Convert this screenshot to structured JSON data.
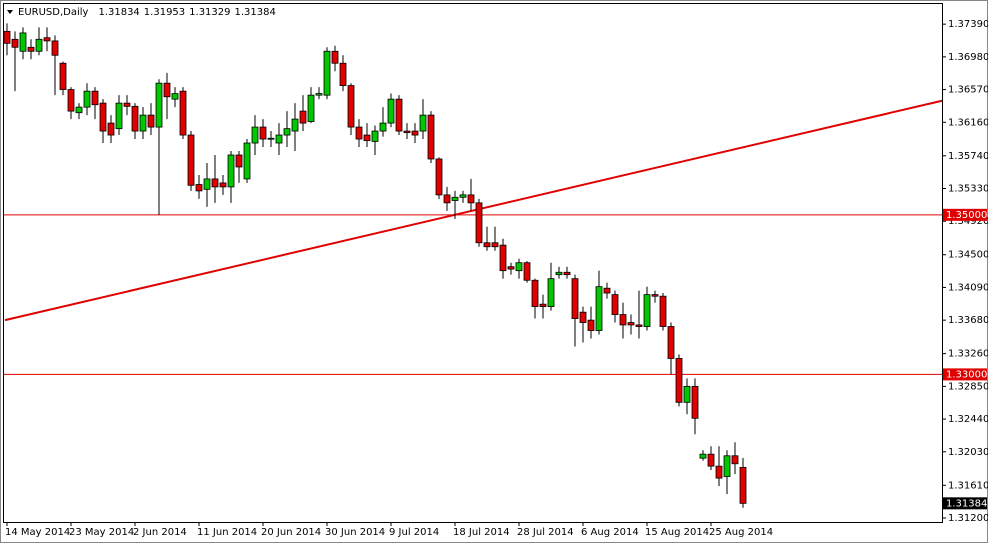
{
  "chart_data": {
    "type": "candlestick",
    "header": {
      "symbol": "EURUSD,Daily",
      "values": [
        {
          "value": 1.31834,
          "label": "1.31834"
        },
        {
          "value": 1.31953,
          "label": "1.31953"
        },
        {
          "value": 1.31329,
          "label": "1.31329"
        },
        {
          "value": 1.31384,
          "label": "1.31384"
        }
      ]
    },
    "categories": [
      "14 May 2014",
      null,
      null,
      null,
      null,
      null,
      null,
      null,
      "23 May 2014",
      null,
      null,
      null,
      null,
      null,
      null,
      null,
      "2 Jun 2014",
      null,
      null,
      null,
      null,
      null,
      null,
      null,
      "11 Jun 2014",
      null,
      null,
      null,
      null,
      null,
      null,
      null,
      "20 Jun 2014",
      null,
      null,
      null,
      null,
      null,
      null,
      null,
      "30 Jun 2014",
      null,
      null,
      null,
      null,
      null,
      null,
      null,
      "9 Jul 2014",
      null,
      null,
      null,
      null,
      null,
      null,
      null,
      "18 Jul 2014",
      null,
      null,
      null,
      null,
      null,
      null,
      null,
      "28 Jul 2014",
      null,
      null,
      null,
      null,
      null,
      null,
      null,
      "6 Aug 2014",
      null,
      null,
      null,
      null,
      null,
      null,
      null,
      "15 Aug 2014",
      null,
      null,
      null,
      null,
      null,
      null,
      null,
      "25 Aug 2014",
      null,
      null,
      null,
      null
    ],
    "open": [
      1.373,
      1.372,
      1.3705,
      1.371,
      1.3705,
      1.3722,
      1.3718,
      1.369,
      1.3657,
      1.3628,
      1.3635,
      1.3655,
      1.364,
      1.3615,
      1.3608,
      1.364,
      1.3636,
      1.3605,
      1.3625,
      1.361,
      1.3665,
      1.3645,
      1.3655,
      1.36,
      1.3538,
      1.3532,
      1.3545,
      1.354,
      1.3535,
      1.3575,
      1.3545,
      1.359,
      1.361,
      1.3595,
      1.359,
      1.36,
      1.3605,
      1.363,
      1.3617,
      1.365,
      1.365,
      1.3705,
      1.369,
      1.3662,
      1.361,
      1.36,
      1.3592,
      1.3605,
      1.3615,
      1.3645,
      1.3605,
      1.3605,
      1.3605,
      1.3625,
      1.357,
      1.3525,
      1.3518,
      1.3522,
      1.3525,
      1.3515,
      1.3465,
      1.3465,
      1.3462,
      1.3435,
      1.343,
      1.344,
      1.3418,
      1.3388,
      1.3385,
      1.3425,
      1.3428,
      1.342,
      1.3378,
      1.3368,
      1.3355,
      1.3408,
      1.34,
      1.3375,
      1.3365,
      1.3362,
      1.336,
      1.34,
      1.3398,
      1.336,
      1.332,
      1.3265,
      1.3285,
      1.3195,
      1.32,
      1.3185,
      1.3172,
      1.3198,
      1.31834
    ],
    "high": [
      1.374,
      1.373,
      1.3735,
      1.372,
      1.3735,
      1.3735,
      1.3725,
      1.3692,
      1.366,
      1.364,
      1.3665,
      1.366,
      1.3645,
      1.3625,
      1.365,
      1.365,
      1.364,
      1.3635,
      1.364,
      1.367,
      1.3678,
      1.366,
      1.366,
      1.3605,
      1.355,
      1.3565,
      1.3575,
      1.355,
      1.358,
      1.358,
      1.3595,
      1.3625,
      1.362,
      1.3605,
      1.3615,
      1.363,
      1.364,
      1.365,
      1.366,
      1.366,
      1.371,
      1.3712,
      1.37,
      1.3665,
      1.362,
      1.3615,
      1.3612,
      1.3635,
      1.3652,
      1.365,
      1.3615,
      1.3615,
      1.3645,
      1.363,
      1.3572,
      1.3535,
      1.353,
      1.353,
      1.3545,
      1.352,
      1.3485,
      1.3485,
      1.347,
      1.344,
      1.3445,
      1.3442,
      1.342,
      1.34,
      1.344,
      1.3435,
      1.3435,
      1.3425,
      1.3385,
      1.3385,
      1.343,
      1.3415,
      1.3405,
      1.339,
      1.3375,
      1.3405,
      1.341,
      1.3405,
      1.3402,
      1.3365,
      1.3325,
      1.3295,
      1.3295,
      1.3205,
      1.321,
      1.321,
      1.3205,
      1.3215,
      1.31953
    ],
    "low": [
      1.37,
      1.3655,
      1.3695,
      1.3695,
      1.37,
      1.3705,
      1.365,
      1.365,
      1.362,
      1.362,
      1.3625,
      1.362,
      1.359,
      1.359,
      1.36,
      1.3625,
      1.3595,
      1.3595,
      1.36,
      1.35,
      1.362,
      1.3635,
      1.3595,
      1.353,
      1.352,
      1.351,
      1.3515,
      1.3525,
      1.3515,
      1.354,
      1.354,
      1.3575,
      1.3585,
      1.3585,
      1.3575,
      1.3585,
      1.358,
      1.3605,
      1.3615,
      1.3645,
      1.3645,
      1.368,
      1.3655,
      1.36,
      1.3585,
      1.3585,
      1.3575,
      1.3598,
      1.361,
      1.36,
      1.3595,
      1.359,
      1.3595,
      1.3565,
      1.352,
      1.3505,
      1.3495,
      1.3515,
      1.3505,
      1.346,
      1.3455,
      1.3455,
      1.342,
      1.3425,
      1.342,
      1.3415,
      1.337,
      1.337,
      1.338,
      1.342,
      1.342,
      1.3335,
      1.334,
      1.3345,
      1.335,
      1.3395,
      1.3365,
      1.3345,
      1.335,
      1.3345,
      1.3355,
      1.339,
      1.3355,
      1.33,
      1.326,
      1.325,
      1.3225,
      1.3192,
      1.318,
      1.316,
      1.315,
      1.3175,
      1.31329
    ],
    "close": [
      1.3715,
      1.371,
      1.3728,
      1.3705,
      1.372,
      1.3718,
      1.37,
      1.3657,
      1.363,
      1.3635,
      1.3655,
      1.3638,
      1.3605,
      1.36,
      1.364,
      1.3636,
      1.3605,
      1.3625,
      1.361,
      1.3665,
      1.3648,
      1.3652,
      1.36,
      1.3537,
      1.353,
      1.3545,
      1.3535,
      1.3535,
      1.3575,
      1.356,
      1.359,
      1.361,
      1.3595,
      1.3596,
      1.36,
      1.3608,
      1.362,
      1.3615,
      1.365,
      1.3652,
      1.3705,
      1.369,
      1.3662,
      1.361,
      1.3595,
      1.3593,
      1.3605,
      1.3615,
      1.3645,
      1.3605,
      1.3603,
      1.36,
      1.3625,
      1.357,
      1.3525,
      1.3515,
      1.3522,
      1.3525,
      1.3515,
      1.3465,
      1.346,
      1.346,
      1.343,
      1.3432,
      1.344,
      1.3418,
      1.3385,
      1.3385,
      1.342,
      1.3428,
      1.3425,
      1.337,
      1.3365,
      1.3355,
      1.341,
      1.3402,
      1.3375,
      1.3362,
      1.3362,
      1.336,
      1.34,
      1.3398,
      1.336,
      1.332,
      1.3265,
      1.3285,
      1.3245,
      1.32,
      1.3185,
      1.317,
      1.3198,
      1.3188,
      1.31384
    ],
    "up_color": "#00c800",
    "down_color": "#e00000",
    "ylim": [
      1.3115,
      1.3763
    ],
    "yticks": [
      {
        "value": 1.3739,
        "label": "1.37390"
      },
      {
        "value": 1.3698,
        "label": "1.36980"
      },
      {
        "value": 1.3657,
        "label": "1.36570"
      },
      {
        "value": 1.3616,
        "label": "1.36160"
      },
      {
        "value": 1.3574,
        "label": "1.35740"
      },
      {
        "value": 1.3533,
        "label": "1.35330"
      },
      {
        "value": 1.3492,
        "label": "1.34920"
      },
      {
        "value": 1.345,
        "label": "1.34500"
      },
      {
        "value": 1.3409,
        "label": "1.34090"
      },
      {
        "value": 1.3368,
        "label": "1.33680"
      },
      {
        "value": 1.3326,
        "label": "1.33260"
      },
      {
        "value": 1.3285,
        "label": "1.32850"
      },
      {
        "value": 1.3244,
        "label": "1.32440"
      },
      {
        "value": 1.3203,
        "label": "1.32030"
      },
      {
        "value": 1.3161,
        "label": "1.31610"
      },
      {
        "value": 1.312,
        "label": "1.31200"
      }
    ],
    "hlines": [
      {
        "value": 1.35,
        "label": "1.35000"
      },
      {
        "value": 1.33,
        "label": "1.33000"
      }
    ],
    "line_color": "#e00000",
    "trendline": {
      "start": 1.3368,
      "end": 1.3643
    },
    "current_price": {
      "value": 1.31384,
      "label": "1.31384"
    }
  }
}
